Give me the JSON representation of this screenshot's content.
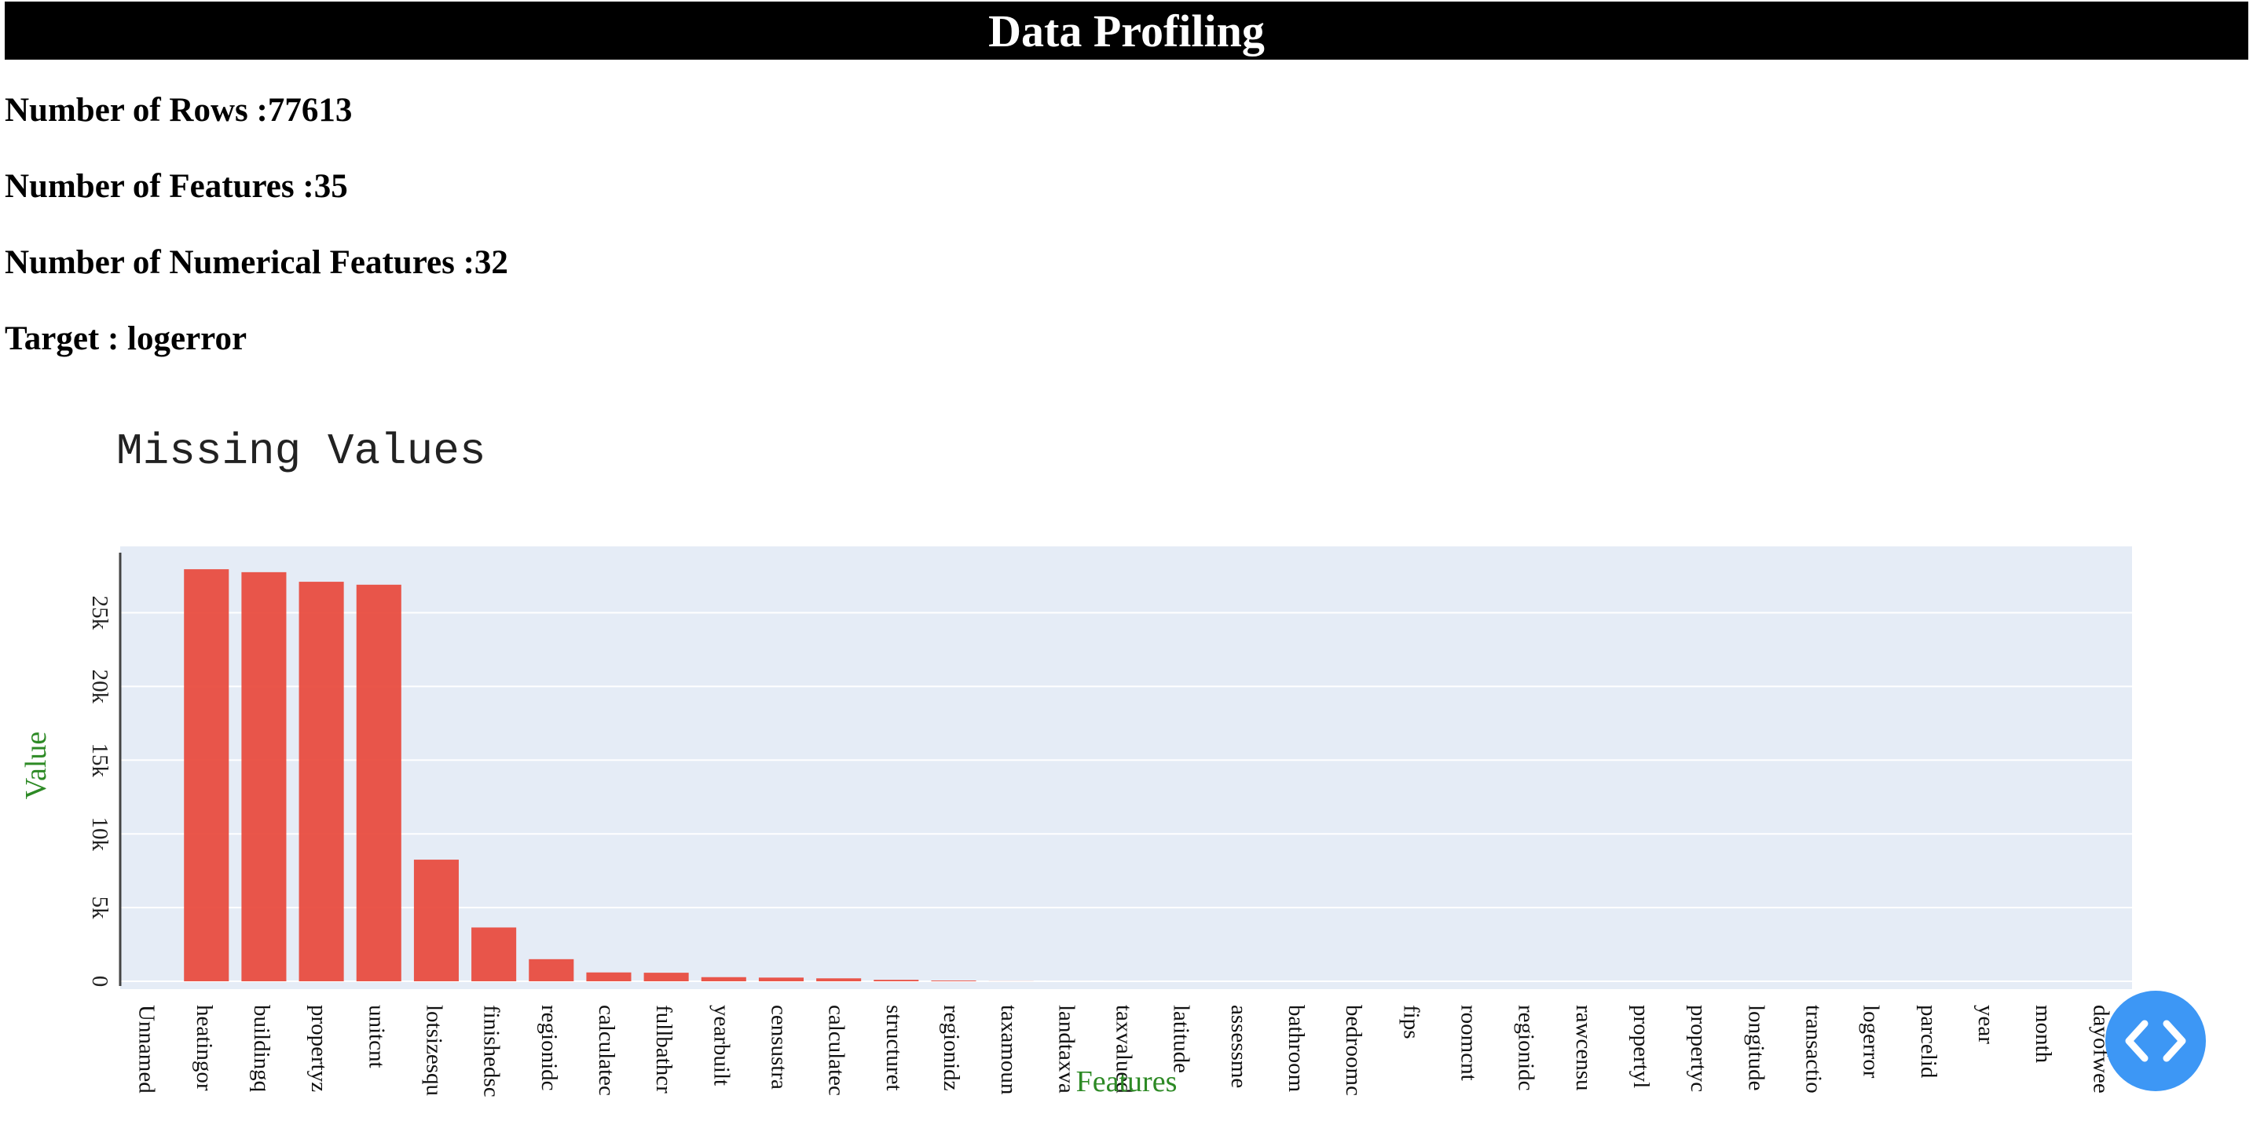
{
  "header": {
    "title": "Data Profiling"
  },
  "stats": {
    "rows": "Number of Rows :77613",
    "features": "Number of Features :35",
    "numerical_features": "Number of Numerical Features :32",
    "target": "Target : logerror"
  },
  "colors": {
    "bar": "#e8483b",
    "plot_bg": "#e5ecf6",
    "axis_title": "#2d8a25",
    "toggle": "#3d97f5"
  },
  "code_toggle": {
    "icon": "code-icon"
  },
  "chart_data": {
    "type": "bar",
    "title": "Missing Values",
    "xlabel": "Features",
    "ylabel": "Value",
    "ylim": [
      0,
      29500
    ],
    "ytick_values": [
      0,
      5000,
      10000,
      15000,
      20000,
      25000
    ],
    "ytick_labels": [
      "0",
      "5k",
      "10k",
      "15k",
      "20k",
      "25k"
    ],
    "grid": true,
    "legend": "none",
    "categories": [
      "Unnamed",
      "heatingor",
      "buildingq",
      "propertyz",
      "unitcnt",
      "lotsizesqu",
      "finishedsc",
      "regionidc",
      "calculatec",
      "fullbathcr",
      "yearbuilt",
      "censustra",
      "calculatec",
      "structuret",
      "regionidz",
      "taxamoun",
      "landtaxva",
      "taxvalued",
      "latitude",
      "assessme",
      "bathroom",
      "bedroomc",
      "fips",
      "roomcnt",
      "regionidc",
      "rawcensu",
      "propertyl",
      "propertyc",
      "longitude",
      "transactio",
      "logerror",
      "parcelid",
      "year",
      "month",
      "dayofwee"
    ],
    "values": [
      0,
      27950,
      27750,
      27100,
      26900,
      8250,
      3650,
      1500,
      600,
      580,
      280,
      250,
      200,
      100,
      50,
      6,
      1,
      1,
      0,
      0,
      0,
      0,
      0,
      0,
      0,
      0,
      0,
      0,
      0,
      0,
      0,
      0,
      0,
      0,
      0
    ]
  }
}
